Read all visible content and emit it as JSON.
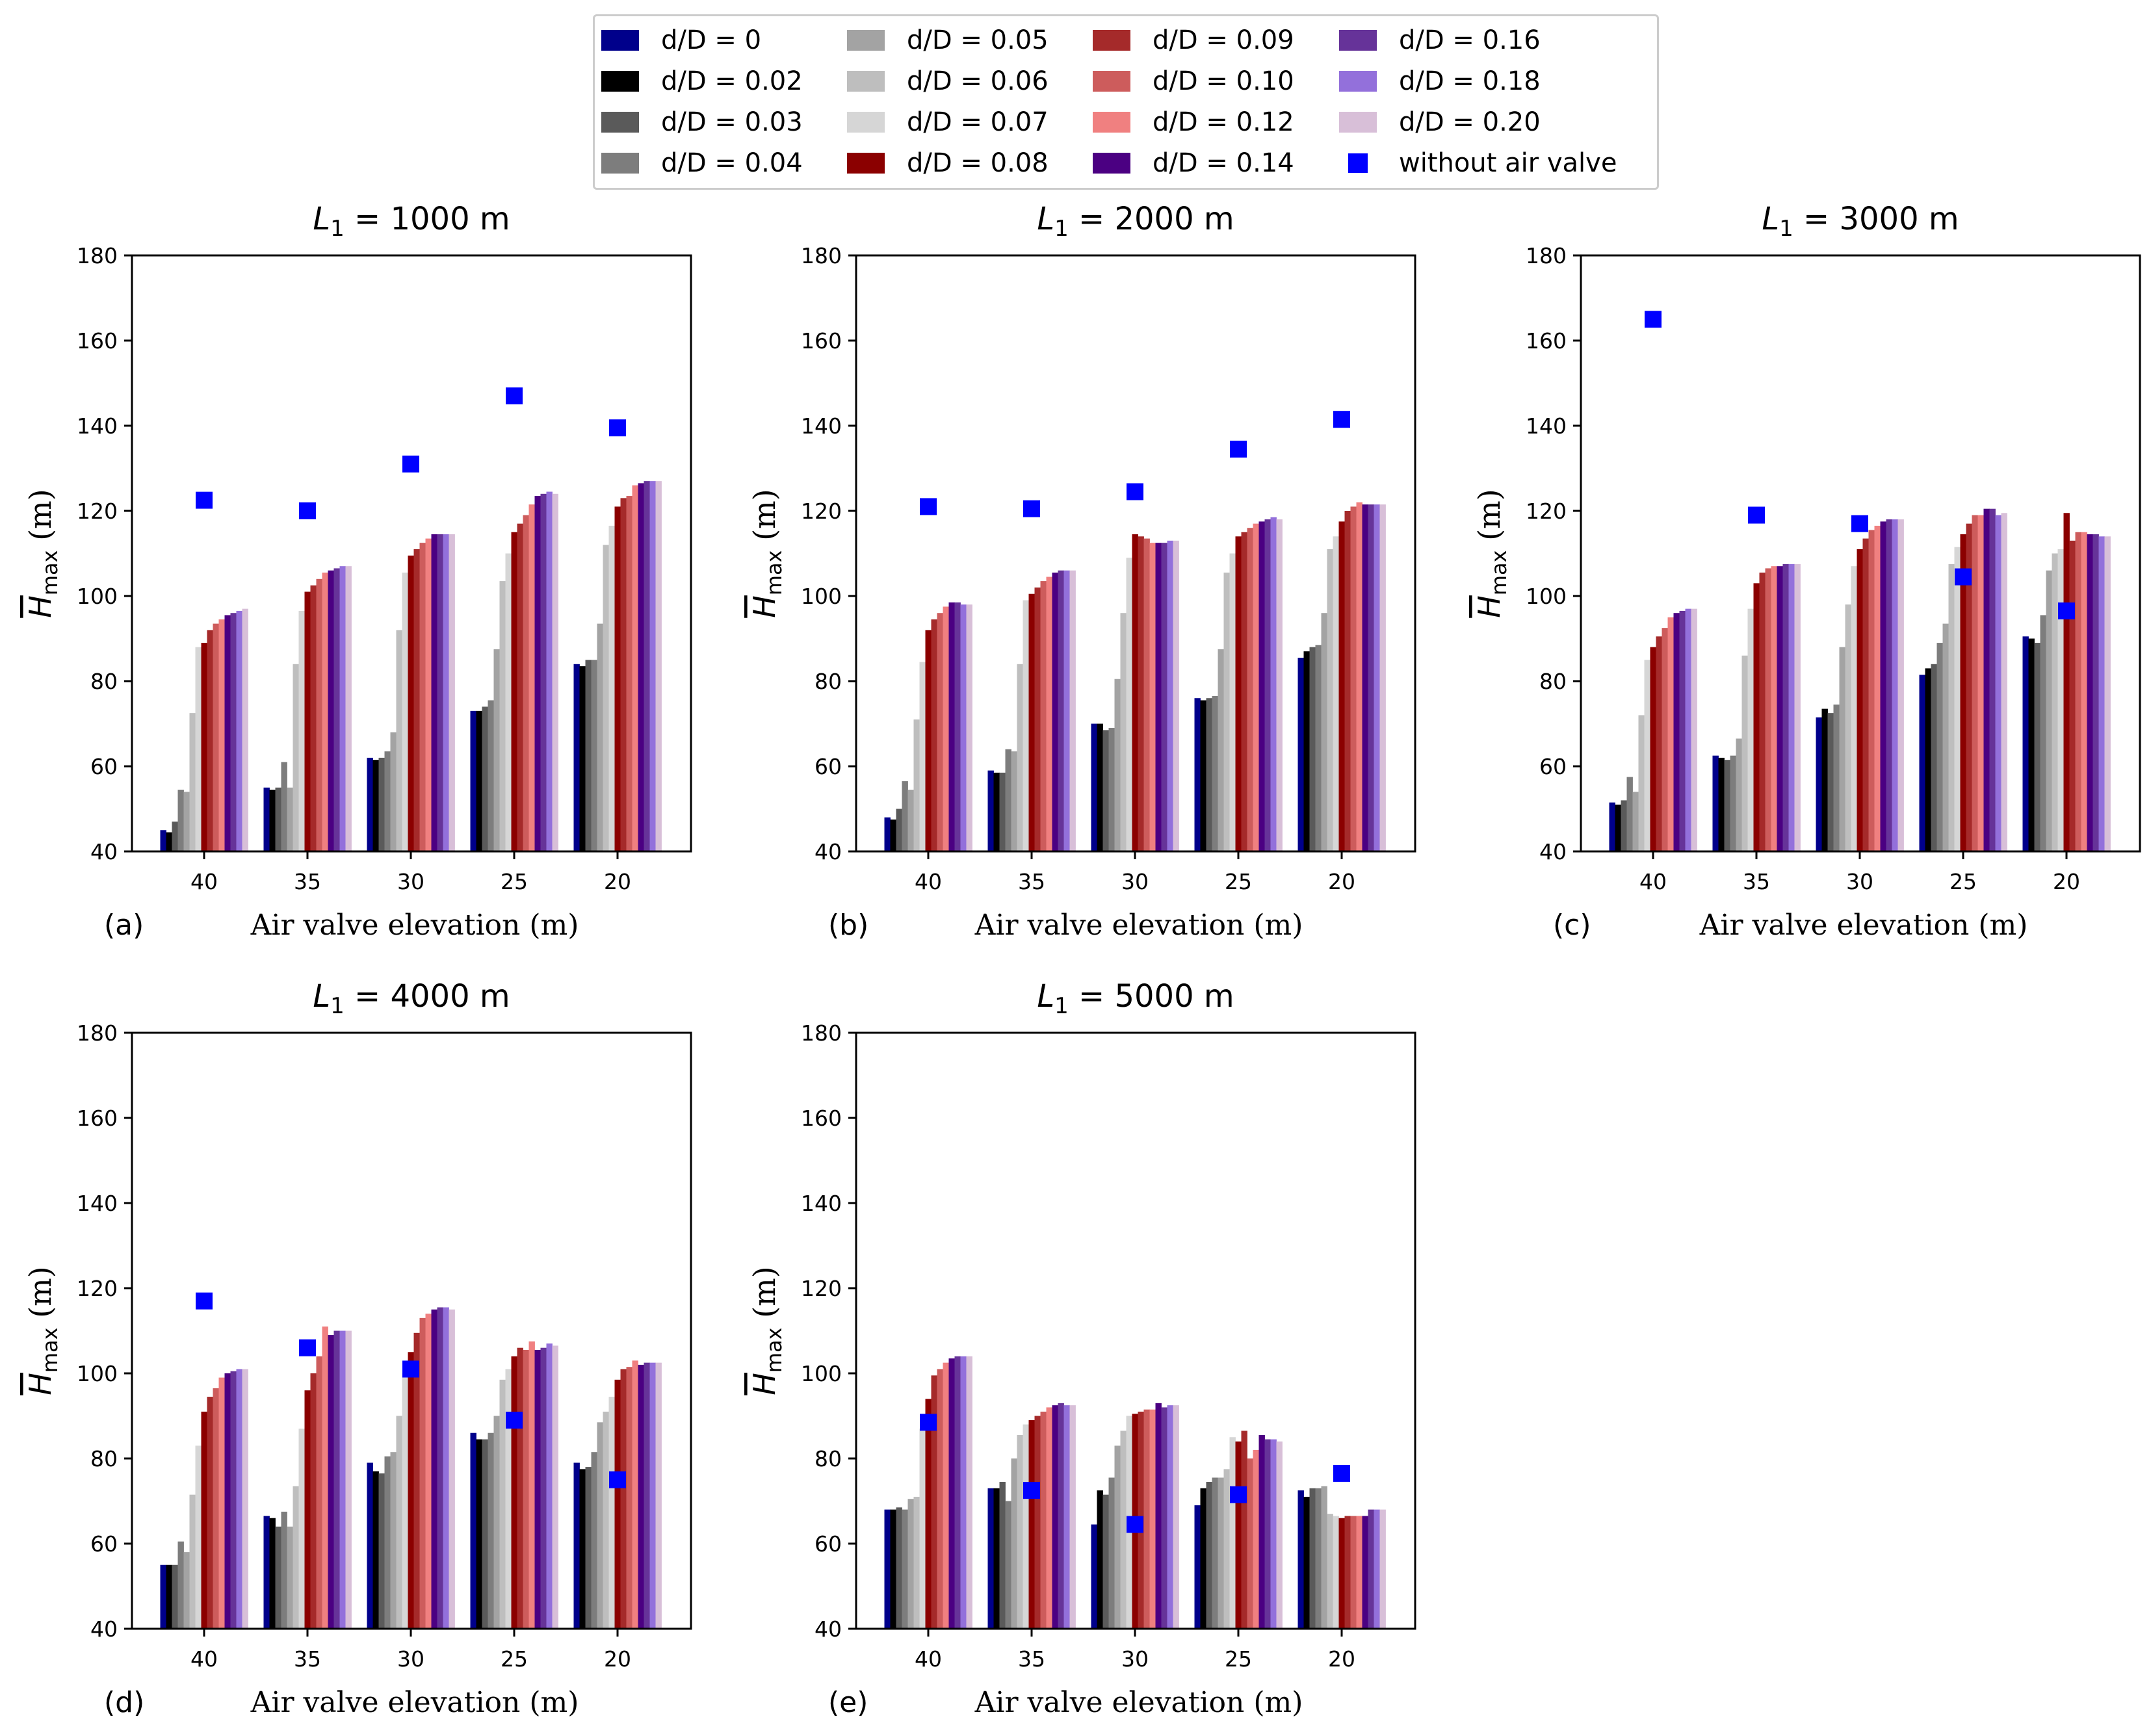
{
  "legend": {
    "entries": [
      {
        "label": "d/D = 0",
        "color": "#00008b"
      },
      {
        "label": "d/D = 0.02",
        "color": "#000000"
      },
      {
        "label": "d/D = 0.03",
        "color": "#5a5a5a"
      },
      {
        "label": "d/D = 0.04",
        "color": "#7d7d7d"
      },
      {
        "label": "d/D = 0.05",
        "color": "#a3a3a3"
      },
      {
        "label": "d/D = 0.06",
        "color": "#bebebe"
      },
      {
        "label": "d/D = 0.07",
        "color": "#d6d6d6"
      },
      {
        "label": "d/D = 0.08",
        "color": "#8b0000"
      },
      {
        "label": "d/D = 0.09",
        "color": "#a52a2a"
      },
      {
        "label": "d/D = 0.10",
        "color": "#cd5c5c"
      },
      {
        "label": "d/D = 0.12",
        "color": "#f08080"
      },
      {
        "label": "d/D = 0.14",
        "color": "#4b0082"
      },
      {
        "label": "d/D = 0.16",
        "color": "#663399"
      },
      {
        "label": "d/D = 0.18",
        "color": "#9370db"
      },
      {
        "label": "d/D = 0.20",
        "color": "#d8bfd8"
      }
    ],
    "marker": {
      "label": "without air valve",
      "color": "#0000ff"
    }
  },
  "chart_data": [
    {
      "type": "bar",
      "panel": "(a)",
      "title": "L_1 = 1000 m",
      "title_parts": {
        "var": "L",
        "sub": "1",
        "rest": " = 1000 m"
      },
      "xlabel": "Air valve elevation (m)",
      "ylabel": "H_max (m)",
      "ylim": [
        40,
        180
      ],
      "yticks": [
        40,
        60,
        80,
        100,
        120,
        140,
        160,
        180
      ],
      "categories": [
        "40",
        "35",
        "30",
        "25",
        "20"
      ],
      "bars": [
        [
          45,
          44.5,
          47,
          54.5,
          54,
          72.5,
          88,
          89,
          92,
          93.5,
          94.5,
          95.5,
          96,
          96.5,
          97
        ],
        [
          55,
          54.5,
          55,
          61,
          55,
          84,
          96.5,
          101,
          102.5,
          104,
          105.5,
          106,
          106.5,
          107,
          107
        ],
        [
          62,
          61.5,
          62,
          63.5,
          68,
          92,
          105.5,
          109.5,
          111,
          112.5,
          113.5,
          114.5,
          114.5,
          114.5,
          114.5
        ],
        [
          73,
          73,
          74,
          75.5,
          87.5,
          103.5,
          110,
          115,
          117,
          119,
          121.5,
          123.5,
          124,
          124.5,
          124
        ],
        [
          84,
          83.5,
          85,
          85,
          93.5,
          112,
          116.5,
          121,
          123,
          123.5,
          126,
          126.5,
          127,
          127,
          127
        ]
      ],
      "without_air_valve": [
        122.5,
        120,
        131,
        147,
        139.5
      ]
    },
    {
      "type": "bar",
      "panel": "(b)",
      "title": "L_1 = 2000 m",
      "title_parts": {
        "var": "L",
        "sub": "1",
        "rest": " = 2000 m"
      },
      "xlabel": "Air valve elevation (m)",
      "ylabel": "H_max (m)",
      "ylim": [
        40,
        180
      ],
      "yticks": [
        40,
        60,
        80,
        100,
        120,
        140,
        160,
        180
      ],
      "categories": [
        "40",
        "35",
        "30",
        "25",
        "20"
      ],
      "bars": [
        [
          48,
          47.5,
          50,
          56.5,
          54.5,
          71,
          84.5,
          92,
          94.5,
          96,
          97.5,
          98.5,
          98.5,
          98,
          98
        ],
        [
          59,
          58.5,
          58.5,
          64,
          63.5,
          84,
          99,
          100.5,
          102,
          103.5,
          104.5,
          105.5,
          106,
          106,
          106
        ],
        [
          70,
          70,
          68.5,
          69,
          80.5,
          96,
          109,
          114.5,
          114,
          113.5,
          112.5,
          112.5,
          112.5,
          113,
          113
        ],
        [
          76,
          75.5,
          76,
          76.5,
          87.5,
          105.5,
          110,
          114,
          115,
          116,
          117,
          117.5,
          118,
          118.5,
          118
        ],
        [
          85.5,
          87,
          88,
          88.5,
          96,
          111,
          114,
          117.5,
          120,
          121,
          122,
          121.5,
          121.5,
          121.5,
          121.5
        ]
      ],
      "without_air_valve": [
        121,
        120.5,
        124.5,
        134.5,
        141.5
      ]
    },
    {
      "type": "bar",
      "panel": "(c)",
      "title": "L_1 = 3000 m",
      "title_parts": {
        "var": "L",
        "sub": "1",
        "rest": " = 3000 m"
      },
      "xlabel": "Air valve elevation (m)",
      "ylabel": "H_max (m)",
      "ylim": [
        40,
        180
      ],
      "yticks": [
        40,
        60,
        80,
        100,
        120,
        140,
        160,
        180
      ],
      "categories": [
        "40",
        "35",
        "30",
        "25",
        "20"
      ],
      "bars": [
        [
          51.5,
          51,
          52,
          57.5,
          54,
          72,
          85,
          88,
          90.5,
          92.5,
          95,
          96,
          96.5,
          97,
          97
        ],
        [
          62.5,
          62,
          61.5,
          62.5,
          66.5,
          86,
          97,
          103,
          105.5,
          106.5,
          107,
          107,
          107.5,
          107.5,
          107.5
        ],
        [
          71.5,
          73.5,
          72.5,
          74.5,
          88,
          98,
          107,
          111,
          113.5,
          115.5,
          116.5,
          117.5,
          118,
          118,
          118
        ],
        [
          81.5,
          83,
          84,
          89,
          93.5,
          107.5,
          111.5,
          114.5,
          117,
          119,
          119,
          120.5,
          120.5,
          119,
          119.5
        ],
        [
          90.5,
          90,
          89,
          95.5,
          106,
          110,
          111,
          119.5,
          113,
          115,
          115,
          114.5,
          114.5,
          114,
          114
        ]
      ],
      "without_air_valve": [
        165,
        119,
        117,
        104.5,
        96.5
      ]
    },
    {
      "type": "bar",
      "panel": "(d)",
      "title": "L_1 = 4000 m",
      "title_parts": {
        "var": "L",
        "sub": "1",
        "rest": " = 4000 m"
      },
      "xlabel": "Air valve elevation (m)",
      "ylabel": "H_max (m)",
      "ylim": [
        40,
        180
      ],
      "yticks": [
        40,
        60,
        80,
        100,
        120,
        140,
        160,
        180
      ],
      "categories": [
        "40",
        "35",
        "30",
        "25",
        "20"
      ],
      "bars": [
        [
          55,
          55,
          55,
          60.5,
          58,
          71.5,
          83,
          91,
          94.5,
          96.5,
          99,
          100,
          100.5,
          101,
          101
        ],
        [
          66.5,
          66,
          64,
          67.5,
          64,
          73.5,
          87,
          96,
          100,
          104,
          111,
          109,
          110,
          110,
          110
        ],
        [
          79,
          77,
          76.5,
          80.5,
          81.5,
          90,
          100,
          105,
          109.5,
          113,
          114,
          115,
          115.5,
          115.5,
          115
        ],
        [
          86,
          84.5,
          84.5,
          86,
          90,
          98.5,
          101,
          104,
          106,
          105.5,
          107.5,
          105.5,
          106,
          107,
          106.5
        ],
        [
          79,
          77.5,
          78,
          81.5,
          88.5,
          91,
          94.5,
          98.5,
          101,
          101.5,
          103,
          102,
          102.5,
          102.5,
          102.5
        ]
      ],
      "without_air_valve": [
        117,
        106,
        101,
        89,
        75
      ]
    },
    {
      "type": "bar",
      "panel": "(e)",
      "title": "L_1 = 5000 m",
      "title_parts": {
        "var": "L",
        "sub": "1",
        "rest": " = 5000 m"
      },
      "xlabel": "Air valve elevation (m)",
      "ylabel": "H_max (m)",
      "ylim": [
        40,
        180
      ],
      "yticks": [
        40,
        60,
        80,
        100,
        120,
        140,
        160,
        180
      ],
      "categories": [
        "40",
        "35",
        "30",
        "25",
        "20"
      ],
      "bars": [
        [
          68,
          68,
          68.5,
          68,
          70.5,
          71,
          87,
          94,
          99.5,
          101,
          102.5,
          103.5,
          104,
          104,
          104
        ],
        [
          73,
          73,
          74.5,
          70,
          80,
          85.5,
          88,
          89,
          90,
          91,
          92,
          92.5,
          93,
          92.5,
          92.5
        ],
        [
          64.5,
          72.5,
          71.5,
          75.5,
          83,
          86.5,
          90,
          90.5,
          91,
          91.5,
          91.5,
          93,
          92,
          92.5,
          92.5
        ],
        [
          69,
          73,
          74.5,
          75.5,
          75.5,
          77.5,
          85,
          84,
          86.5,
          80,
          82,
          85.5,
          84.5,
          84.5,
          84
        ],
        [
          72.5,
          71,
          73,
          73,
          73.5,
          67,
          66.5,
          66,
          66.5,
          66.5,
          66.5,
          66.5,
          68,
          68,
          68
        ]
      ],
      "without_air_valve": [
        88.5,
        72.5,
        64.5,
        71.5,
        76.5
      ]
    }
  ]
}
